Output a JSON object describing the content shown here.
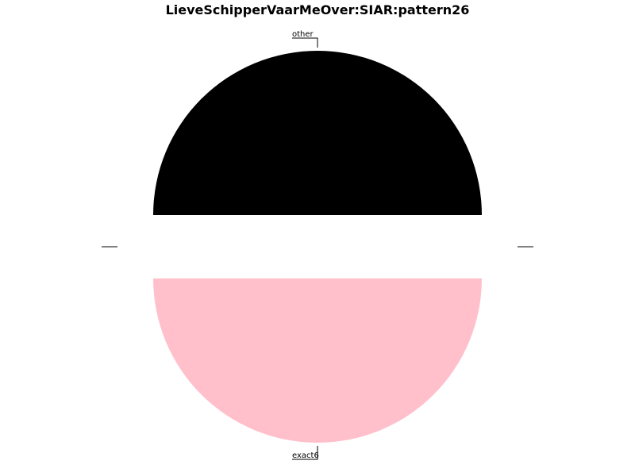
{
  "chart_data": {
    "type": "pie",
    "title": "LieveSchipperVaarMeOver:SIAR:pattern26",
    "slices": [
      {
        "label": "other",
        "value": 50,
        "color": "#000000"
      },
      {
        "label": "exact6",
        "value": 50,
        "color": "#ffc0cb"
      }
    ],
    "legend": "none",
    "grid": false,
    "exploded": true
  }
}
